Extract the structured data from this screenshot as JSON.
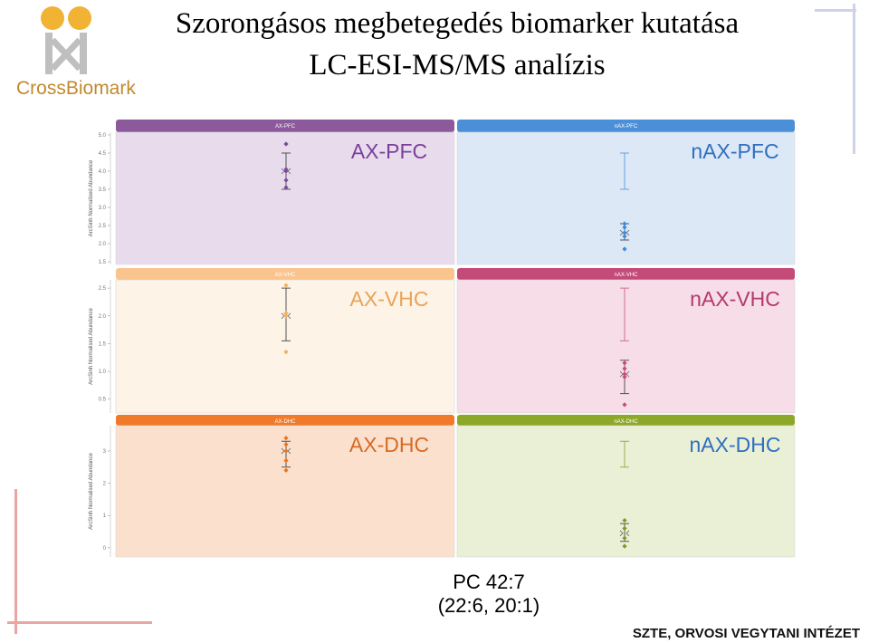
{
  "title_line1": "Szorongásos megbetegedés biomarker kutatása",
  "title_line2": "LC-ESI-MS/MS analízis",
  "logo_text": "CrossBiomark",
  "compound_line1": "PC 42:7",
  "compound_line2": "(22:6, 20:1)",
  "footer": "SZTE, ORVOSI VEGYTANI INTÉZET",
  "chart_data": {
    "type": "scatter",
    "ylabel": "ArcSinh Normalised Abundance",
    "rows": [
      {
        "yticks": [
          1.5,
          2.0,
          2.5,
          3.0,
          3.5,
          4.0,
          4.5,
          5.0
        ],
        "ylim": [
          1.5,
          5.0
        ],
        "panels": [
          {
            "header": "AX-PFC",
            "label": "AX-PFC",
            "header_color": "#8c5a9c",
            "bg": "#e8dcec",
            "label_color": "#7a3f9a",
            "mark_color": "#7a4a9a",
            "points": [
              4.75,
              4.05,
              4.0,
              3.75,
              3.55
            ],
            "mean": 4.0,
            "err_low": 3.5,
            "err_high": 4.5
          },
          {
            "header": "nAX-PFC",
            "header_color": "#4a8fd8",
            "bg": "#dce8f6",
            "label": "nAX-PFC",
            "label_color": "#2f6fbf",
            "mark_color": "#3f8bd6",
            "points": [
              2.55,
              2.45,
              2.3,
              2.2,
              1.85
            ],
            "mean": 2.3,
            "err_low": 2.1,
            "err_high": 2.55,
            "err2_low": 3.5,
            "err2_high": 4.5
          }
        ]
      },
      {
        "yticks": [
          0.5,
          1.0,
          1.5,
          2.0,
          2.5
        ],
        "ylim": [
          0.3,
          2.6
        ],
        "panels": [
          {
            "header": "AX-VHC",
            "label": "AX-VHC",
            "header_color": "#f9c48e",
            "bg": "#fdf3e7",
            "label_color": "#e8a458",
            "mark_color": "#f0b060",
            "points": [
              2.55,
              2.05,
              2.0,
              1.35
            ],
            "mean": 2.0,
            "err_low": 1.55,
            "err_high": 2.5
          },
          {
            "header": "nAX-VHC",
            "header_color": "#c44a78",
            "bg": "#f6dde7",
            "label": "nAX-VHC",
            "label_color": "#b43a6a",
            "mark_color": "#c84a7a",
            "points": [
              1.15,
              1.05,
              0.95,
              0.9,
              0.4
            ],
            "mean": 0.95,
            "err_low": 0.6,
            "err_high": 1.2,
            "err2_low": 1.55,
            "err2_high": 2.5
          }
        ]
      },
      {
        "yticks": [
          0,
          1,
          2,
          3
        ],
        "ylim": [
          -0.2,
          3.7
        ],
        "panels": [
          {
            "header": "AX-DHC",
            "label": "AX-DHC",
            "header_color": "#f07a2a",
            "bg": "#fbe0cd",
            "label_color": "#d86a22",
            "mark_color": "#e8741e",
            "points": [
              3.4,
              3.2,
              3.0,
              2.7,
              2.4
            ],
            "mean": 3.0,
            "err_low": 2.5,
            "err_high": 3.3
          },
          {
            "header": "nAX-DHC",
            "header_color": "#8da828",
            "bg": "#eaf0d6",
            "label": "nAX-DHC",
            "label_color": "#2f6fbf",
            "mark_color": "#7a9a22",
            "points": [
              0.85,
              0.6,
              0.3,
              0.05
            ],
            "mean": 0.45,
            "err_low": 0.2,
            "err_high": 0.75,
            "err2_low": 2.5,
            "err2_high": 3.3
          }
        ]
      }
    ]
  }
}
